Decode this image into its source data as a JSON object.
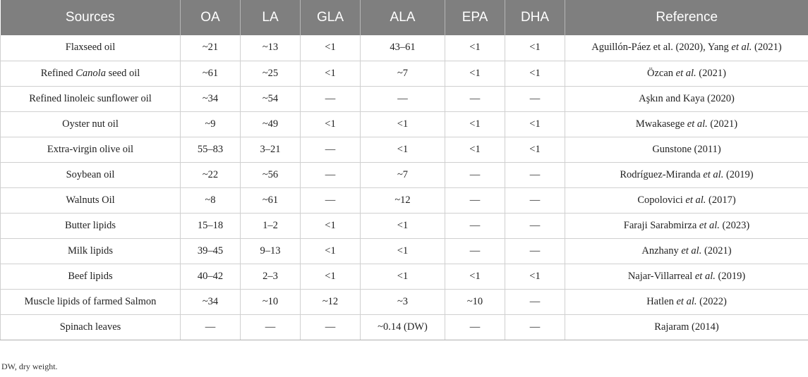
{
  "table": {
    "headers": [
      "Sources",
      "OA",
      "LA",
      "GLA",
      "ALA",
      "EPA",
      "DHA",
      "Reference"
    ],
    "rows": [
      {
        "source": "Flaxseed oil",
        "source_pre": "",
        "source_italic": "",
        "source_post": "",
        "oa": "~21",
        "la": "~13",
        "gla": "<1",
        "ala": "43–61",
        "epa": "<1",
        "dha": "<1",
        "ref_pre": "Aguillón-Páez et al. (2020), Yang ",
        "ref_italic": "et al.",
        "ref_post": " (2021)"
      },
      {
        "source": "",
        "source_pre": "Refined ",
        "source_italic": "Canola",
        "source_post": " seed oil",
        "oa": "~61",
        "la": "~25",
        "gla": "<1",
        "ala": "~7",
        "epa": "<1",
        "dha": "<1",
        "ref_pre": "Özcan ",
        "ref_italic": "et al.",
        "ref_post": " (2021)"
      },
      {
        "source": "Refined linoleic sunflower oil",
        "source_pre": "",
        "source_italic": "",
        "source_post": "",
        "oa": "~34",
        "la": "~54",
        "gla": "—",
        "ala": "—",
        "epa": "—",
        "dha": "—",
        "ref_pre": "Aşkın and Kaya (2020)",
        "ref_italic": "",
        "ref_post": ""
      },
      {
        "source": "Oyster nut oil",
        "source_pre": "",
        "source_italic": "",
        "source_post": "",
        "oa": "~9",
        "la": "~49",
        "gla": "<1",
        "ala": "<1",
        "epa": "<1",
        "dha": "<1",
        "ref_pre": "Mwakasege ",
        "ref_italic": "et al.",
        "ref_post": " (2021)"
      },
      {
        "source": "Extra-virgin olive oil",
        "source_pre": "",
        "source_italic": "",
        "source_post": "",
        "oa": "55–83",
        "la": "3–21",
        "gla": "—",
        "ala": "<1",
        "epa": "<1",
        "dha": "<1",
        "ref_pre": "Gunstone (2011)",
        "ref_italic": "",
        "ref_post": ""
      },
      {
        "source": "Soybean oil",
        "source_pre": "",
        "source_italic": "",
        "source_post": "",
        "oa": "~22",
        "la": "~56",
        "gla": "—",
        "ala": "~7",
        "epa": "—",
        "dha": "—",
        "ref_pre": "Rodríguez-Miranda ",
        "ref_italic": "et al.",
        "ref_post": " (2019)"
      },
      {
        "source": "Walnuts Oil",
        "source_pre": "",
        "source_italic": "",
        "source_post": "",
        "oa": "~8",
        "la": "~61",
        "gla": "—",
        "ala": "~12",
        "epa": "—",
        "dha": "—",
        "ref_pre": "Copolovici ",
        "ref_italic": "et al.",
        "ref_post": " (2017)"
      },
      {
        "source": "Butter lipids",
        "source_pre": "",
        "source_italic": "",
        "source_post": "",
        "oa": "15–18",
        "la": "1–2",
        "gla": "<1",
        "ala": "<1",
        "epa": "—",
        "dha": "—",
        "ref_pre": "Faraji Sarabmirza ",
        "ref_italic": "et al.",
        "ref_post": " (2023)"
      },
      {
        "source": "Milk lipids",
        "source_pre": "",
        "source_italic": "",
        "source_post": "",
        "oa": "39–45",
        "la": "9–13",
        "gla": "<1",
        "ala": "<1",
        "epa": "—",
        "dha": "—",
        "ref_pre": "Anzhany ",
        "ref_italic": "et al.",
        "ref_post": " (2021)"
      },
      {
        "source": "Beef lipids",
        "source_pre": "",
        "source_italic": "",
        "source_post": "",
        "oa": "40–42",
        "la": "2–3",
        "gla": "<1",
        "ala": "<1",
        "epa": "<1",
        "dha": "<1",
        "ref_pre": "Najar-Villarreal ",
        "ref_italic": "et al.",
        "ref_post": " (2019)"
      },
      {
        "source": "Muscle lipids of farmed Salmon",
        "source_pre": "",
        "source_italic": "",
        "source_post": "",
        "oa": "~34",
        "la": "~10",
        "gla": "~12",
        "ala": "~3",
        "epa": "~10",
        "dha": "—",
        "ref_pre": "Hatlen ",
        "ref_italic": "et al.",
        "ref_post": " (2022)"
      },
      {
        "source": "Spinach leaves",
        "source_pre": "",
        "source_italic": "",
        "source_post": "",
        "oa": "—",
        "la": "—",
        "gla": "—",
        "ala": "~0.14 (DW)",
        "epa": "—",
        "dha": "—",
        "ref_pre": "Rajaram (2014)",
        "ref_italic": "",
        "ref_post": ""
      }
    ]
  },
  "footnote": "DW, dry weight.",
  "colors": {
    "header_bg": "#7f7f7f",
    "header_text": "#ffffff",
    "grid": "#d0d0d0"
  }
}
